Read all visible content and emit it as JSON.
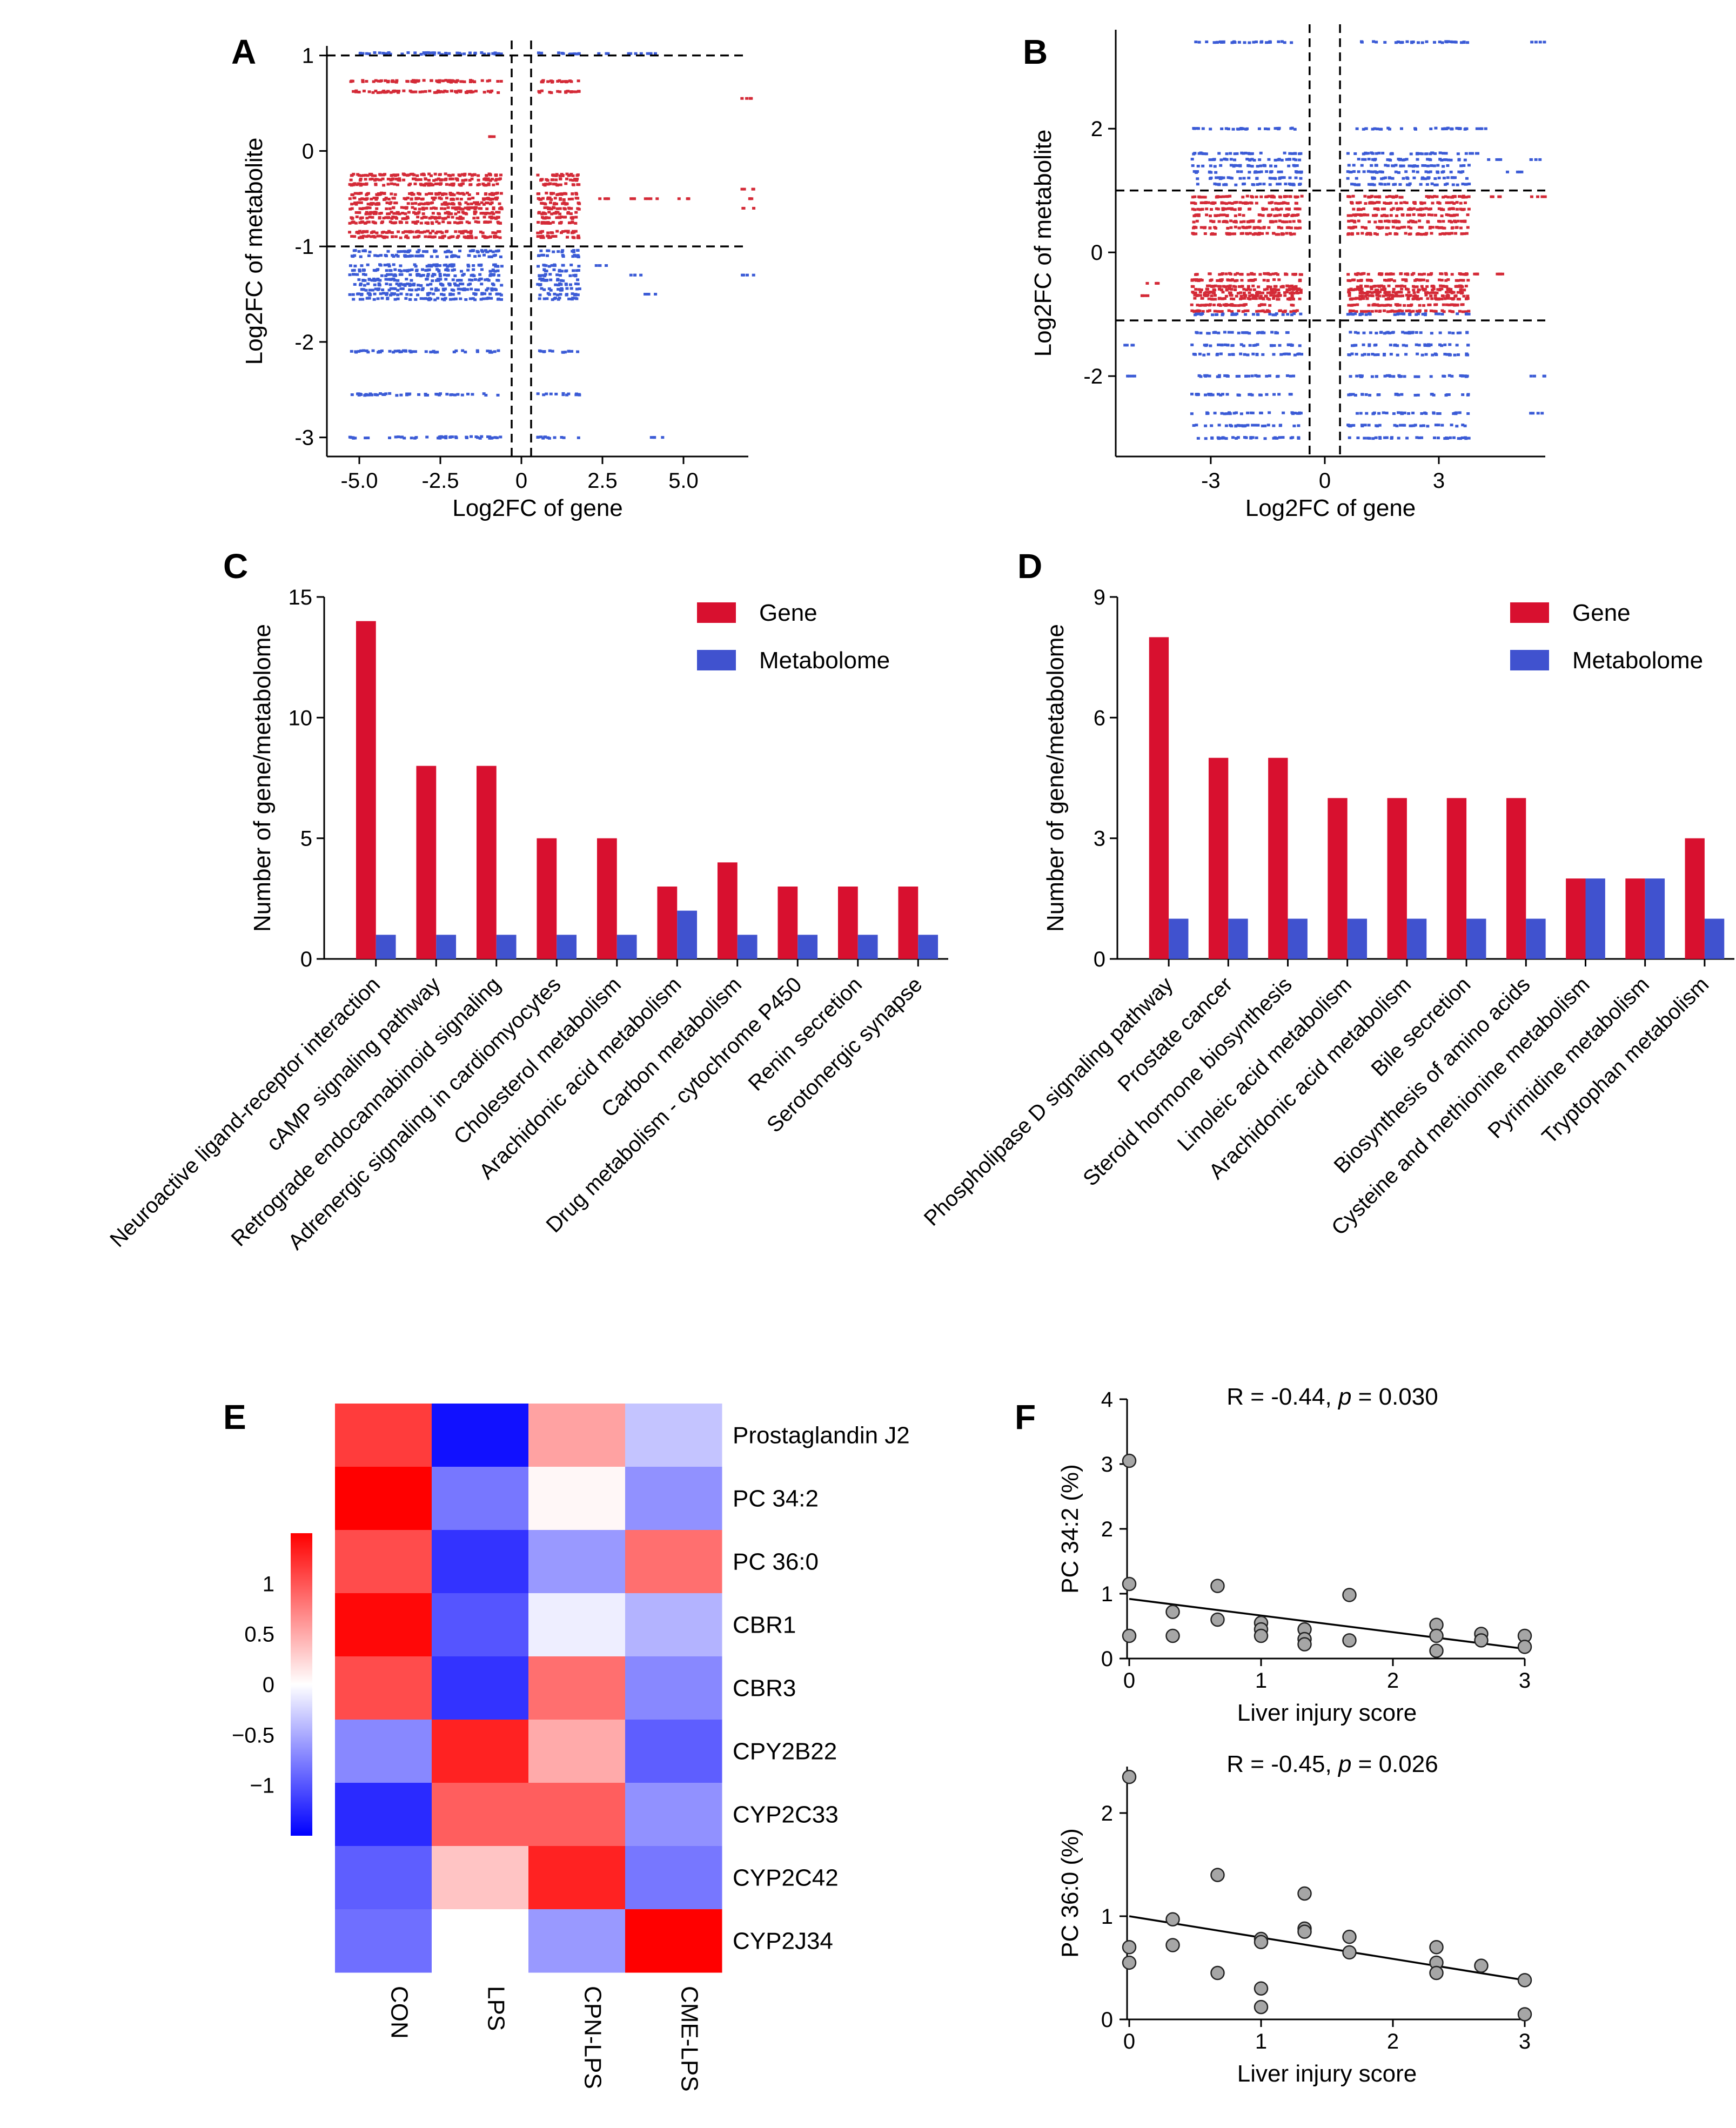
{
  "figure": {
    "panel_labels": [
      "A",
      "B",
      "C",
      "D",
      "E",
      "F"
    ]
  },
  "colors": {
    "red": "#d42a37",
    "blue": "#3b5bd6",
    "bar_gene": "#d8102f",
    "bar_met": "#4052cf",
    "heat_high": "#ff0000",
    "heat_mid": "#ffffff",
    "heat_low": "#0000ff",
    "point_fill": "#a6a6a6"
  },
  "chart_data": [
    {
      "id": "A",
      "type": "scatter",
      "xlabel": "Log2FC of gene",
      "ylabel": "Log2FC of metabolite",
      "xlim": [
        -6,
        7
      ],
      "ylim": [
        -3.2,
        1.1
      ],
      "xticks": [
        "-5.0",
        "-2.5",
        "0",
        "2.5",
        "5.0"
      ],
      "xtick_values": [
        -5,
        -2.5,
        0,
        2.5,
        5
      ],
      "yticks": [
        "1",
        "0",
        "-1",
        "-2",
        "-3"
      ],
      "ytick_values": [
        1,
        0,
        -1,
        -2,
        -3
      ],
      "threshold_x": [
        -0.3,
        0.3
      ],
      "threshold_y": [
        -1,
        1
      ],
      "dense_range_left": [
        -5.3,
        -0.6
      ],
      "dense_range_right": [
        0.5,
        1.8
      ],
      "red_bands": [
        0.73,
        0.62,
        -0.25,
        -0.3,
        -0.35,
        -0.45,
        -0.5,
        -0.55,
        -0.6,
        -0.65,
        -0.7,
        -0.75,
        -0.85,
        -0.9
      ],
      "blue_bands": [
        1.02,
        -1.05,
        -1.1,
        -1.2,
        -1.25,
        -1.3,
        -1.35,
        -1.4,
        -1.45,
        -1.5,
        -1.55,
        -2.1,
        -2.55,
        -3.0
      ],
      "red_sparse_right": [
        [
          2.5,
          -0.5
        ],
        [
          3.5,
          -0.5
        ],
        [
          4.0,
          -0.5
        ],
        [
          5.0,
          -0.5
        ],
        [
          7.0,
          -0.5
        ],
        [
          7.0,
          -0.4
        ],
        [
          7.0,
          0.55
        ],
        [
          -1.0,
          0.15
        ],
        [
          7.0,
          -0.6
        ]
      ],
      "blue_sparse_right": [
        [
          2.5,
          1.02
        ],
        [
          3.5,
          1.02
        ],
        [
          4.0,
          1.02
        ],
        [
          2.5,
          -1.2
        ],
        [
          3.5,
          -1.3
        ],
        [
          4.0,
          -1.5
        ],
        [
          4.2,
          -3.0
        ],
        [
          7.0,
          -1.3
        ]
      ]
    },
    {
      "id": "B",
      "type": "scatter",
      "xlabel": "Log2FC of gene",
      "ylabel": "Log2FC of metabolite",
      "xlim": [
        -5.5,
        5.8
      ],
      "ylim": [
        -3.3,
        3.6
      ],
      "xticks": [
        "-3",
        "0",
        "3"
      ],
      "xtick_values": [
        -3,
        0,
        3
      ],
      "yticks": [
        "2",
        "0",
        "-2"
      ],
      "ytick_values": [
        2,
        0,
        -2
      ],
      "threshold_x": [
        -0.4,
        0.4
      ],
      "threshold_y": [
        -1.1,
        1.0
      ],
      "dense_range_left": [
        -3.5,
        -0.6
      ],
      "dense_range_right": [
        0.6,
        3.8
      ],
      "red_bands": [
        0.9,
        0.8,
        0.7,
        0.6,
        0.5,
        0.4,
        0.3,
        -0.35,
        -0.45,
        -0.55,
        -0.6,
        -0.65,
        -0.7,
        -0.75,
        -0.85,
        -0.95
      ],
      "blue_bands": [
        3.4,
        2.0,
        1.6,
        1.5,
        1.4,
        1.3,
        1.2,
        1.1,
        -1.0,
        -1.3,
        -1.5,
        -1.65,
        -2.0,
        -2.3,
        -2.6,
        -2.8,
        -3.0
      ],
      "red_sparse_right": [
        [
          4.0,
          -0.35
        ],
        [
          4.5,
          -0.35
        ],
        [
          4.5,
          0.9
        ],
        [
          5.6,
          0.9
        ],
        [
          -4.8,
          -0.7
        ],
        [
          -4.5,
          -0.5
        ]
      ],
      "blue_sparse_right": [
        [
          4.0,
          1.6
        ],
        [
          4.5,
          1.5
        ],
        [
          5.0,
          1.3
        ],
        [
          5.6,
          1.5
        ],
        [
          5.6,
          3.4
        ],
        [
          4.2,
          2.0
        ],
        [
          -5.2,
          -1.5
        ],
        [
          -5.2,
          -2.0
        ],
        [
          5.6,
          -2.0
        ],
        [
          5.6,
          -2.6
        ]
      ]
    },
    {
      "id": "C",
      "type": "bar",
      "ylabel": "Number of gene/metabolome",
      "ylim": [
        0,
        15
      ],
      "yticks": [
        0,
        5,
        10,
        15
      ],
      "categories": [
        "Neuroactive ligand-receptor interaction",
        "cAMP signaling pathway",
        "Retrograde endocannabinoid signaling",
        "Adrenergic signaling in cardiomyocytes",
        "Cholesterol metabolism",
        "Arachidonic acid metabolism",
        "Carbon metabolism",
        "Drug metabolism - cytochrome P450",
        "Renin secretion",
        "Serotonergic synapse"
      ],
      "series": [
        {
          "name": "Gene",
          "values": [
            14,
            8,
            8,
            5,
            5,
            3,
            4,
            3,
            3,
            3
          ]
        },
        {
          "name": "Metabolome",
          "values": [
            1,
            1,
            1,
            1,
            1,
            2,
            1,
            1,
            1,
            1
          ]
        }
      ],
      "legend": "top-right"
    },
    {
      "id": "D",
      "type": "bar",
      "ylabel": "Number of gene/metabolome",
      "ylim": [
        0,
        9
      ],
      "yticks": [
        0,
        3,
        6,
        9
      ],
      "categories": [
        "Phospholipase D signaling pathway",
        "Prostate cancer",
        "Steroid hormone biosynthesis",
        "Linoleic acid metabolism",
        "Arachidonic acid metabolism",
        "Bile secretion",
        "Biosynthesis of amino acids",
        "Cysteine and methionine metabolism",
        "Pyrimidine metabolism",
        "Tryptophan metabolism"
      ],
      "series": [
        {
          "name": "Gene",
          "values": [
            8,
            5,
            5,
            4,
            4,
            4,
            4,
            2,
            2,
            3
          ]
        },
        {
          "name": "Metabolome",
          "values": [
            1,
            1,
            1,
            1,
            1,
            1,
            1,
            2,
            2,
            1
          ]
        }
      ],
      "legend": "top-right"
    },
    {
      "id": "E",
      "type": "heatmap",
      "columns": [
        "CON",
        "LPS",
        "CPN-LPS",
        "CME-LPS"
      ],
      "rows": [
        "Prostaglandin J2",
        "PC 34:2",
        "PC 36:0",
        "CBR1",
        "CBR3",
        "CPY2B22",
        "CYP2C33",
        "CYP2C42",
        "CYP2J34"
      ],
      "values": [
        [
          1.15,
          -1.4,
          0.55,
          -0.35
        ],
        [
          1.5,
          -0.8,
          0.05,
          -0.65
        ],
        [
          1.05,
          -1.2,
          -0.6,
          0.85
        ],
        [
          1.45,
          -1.0,
          -0.1,
          -0.45
        ],
        [
          1.05,
          -1.2,
          0.85,
          -0.7
        ],
        [
          -0.7,
          1.3,
          0.5,
          -0.95
        ],
        [
          -1.25,
          0.95,
          0.95,
          -0.65
        ],
        [
          -0.95,
          0.35,
          1.3,
          -0.8
        ],
        [
          -0.85,
          0.0,
          -0.6,
          1.5
        ]
      ],
      "colorbar": {
        "range": [
          -1.5,
          1.5
        ],
        "ticks": [
          1,
          0.5,
          0,
          -0.5,
          -1
        ],
        "tick_labels": [
          "1",
          "0.5",
          "0",
          "−0.5",
          "−1"
        ]
      }
    },
    {
      "id": "F1",
      "type": "scatter",
      "title_prefix": "R = -0.44, ",
      "title_p": "p",
      "title_suffix": " = 0.030",
      "xlabel": "Liver injury score",
      "ylabel": "PC 34:2 (%)",
      "xlim": [
        0,
        3
      ],
      "ylim": [
        0,
        4
      ],
      "xticks": [
        0,
        1,
        2,
        3
      ],
      "yticks": [
        0,
        1,
        2,
        3,
        4
      ],
      "points": [
        [
          0,
          3.05
        ],
        [
          0,
          1.15
        ],
        [
          0,
          0.35
        ],
        [
          0.33,
          0.72
        ],
        [
          0.33,
          0.35
        ],
        [
          0.67,
          1.12
        ],
        [
          0.67,
          0.6
        ],
        [
          1,
          0.55
        ],
        [
          1,
          0.45
        ],
        [
          1,
          0.35
        ],
        [
          1.33,
          0.45
        ],
        [
          1.33,
          0.3
        ],
        [
          1.33,
          0.22
        ],
        [
          1.67,
          0.98
        ],
        [
          1.67,
          0.28
        ],
        [
          2.33,
          0.52
        ],
        [
          2.33,
          0.35
        ],
        [
          2.33,
          0.12
        ],
        [
          2.67,
          0.38
        ],
        [
          2.67,
          0.28
        ],
        [
          3,
          0.35
        ],
        [
          3,
          0.18
        ]
      ],
      "fit_line": [
        [
          0,
          0.92
        ],
        [
          3,
          0.15
        ]
      ]
    },
    {
      "id": "F2",
      "type": "scatter",
      "title_prefix": "R = -0.45, ",
      "title_p": "p",
      "title_suffix": " = 0.026",
      "xlabel": "Liver injury score",
      "ylabel": "PC 36:0 (%)",
      "xlim": [
        0,
        3
      ],
      "ylim": [
        0,
        2.45
      ],
      "xticks": [
        0,
        1,
        2,
        3
      ],
      "yticks": [
        0,
        1,
        2
      ],
      "points": [
        [
          0,
          2.35
        ],
        [
          0,
          0.7
        ],
        [
          0,
          0.55
        ],
        [
          0.33,
          0.97
        ],
        [
          0.33,
          0.72
        ],
        [
          0.67,
          1.4
        ],
        [
          0.67,
          0.45
        ],
        [
          1,
          0.78
        ],
        [
          1,
          0.75
        ],
        [
          1,
          0.3
        ],
        [
          1,
          0.12
        ],
        [
          1.33,
          1.22
        ],
        [
          1.33,
          0.88
        ],
        [
          1.33,
          0.85
        ],
        [
          1.67,
          0.8
        ],
        [
          1.67,
          0.65
        ],
        [
          2.33,
          0.7
        ],
        [
          2.33,
          0.55
        ],
        [
          2.33,
          0.45
        ],
        [
          2.67,
          0.52
        ],
        [
          3,
          0.38
        ],
        [
          3,
          0.05
        ]
      ],
      "fit_line": [
        [
          0,
          1.0
        ],
        [
          3,
          0.38
        ]
      ]
    }
  ]
}
